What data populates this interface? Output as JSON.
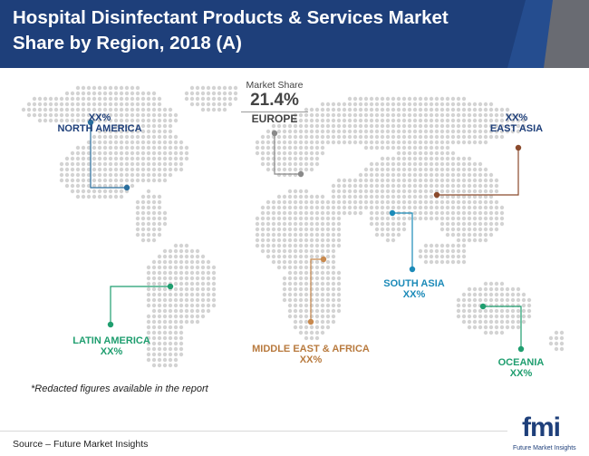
{
  "title": {
    "line1": "Hospital Disinfectant Products & Services Market",
    "line2": "Share by Region, 2018 (A)"
  },
  "chart_data": {
    "type": "map",
    "title": "Hospital Disinfectant Products & Services Market Share by Region, 2018 (A)",
    "highlight": {
      "caption": "Market Share",
      "value": "21.4%",
      "region": "EUROPE"
    },
    "regions": [
      {
        "name": "NORTH AMERICA",
        "value": "XX%",
        "color": "#2a6f9e"
      },
      {
        "name": "EUROPE",
        "value": "21.4%",
        "color": "#8a8a8a"
      },
      {
        "name": "EAST ASIA",
        "value": "XX%",
        "color": "#8b4a2c"
      },
      {
        "name": "SOUTH ASIA",
        "value": "XX%",
        "color": "#1b8ab8"
      },
      {
        "name": "LATIN AMERICA",
        "value": "XX%",
        "color": "#1f9e6f"
      },
      {
        "name": "MIDDLE EAST & AFRICA",
        "value": "XX%",
        "color": "#c8894e"
      },
      {
        "name": "OCEANIA",
        "value": "XX%",
        "color": "#1f9e6f"
      }
    ]
  },
  "note": "*Redacted figures available in the report",
  "source": "Source – Future Market Insights",
  "logo": {
    "word": "fmi",
    "tagline": "Future Market Insights"
  },
  "colors": {
    "header_bg": "#1e3f7a",
    "header_accent": "#e8a33d",
    "dot": "#d3d3d3"
  }
}
